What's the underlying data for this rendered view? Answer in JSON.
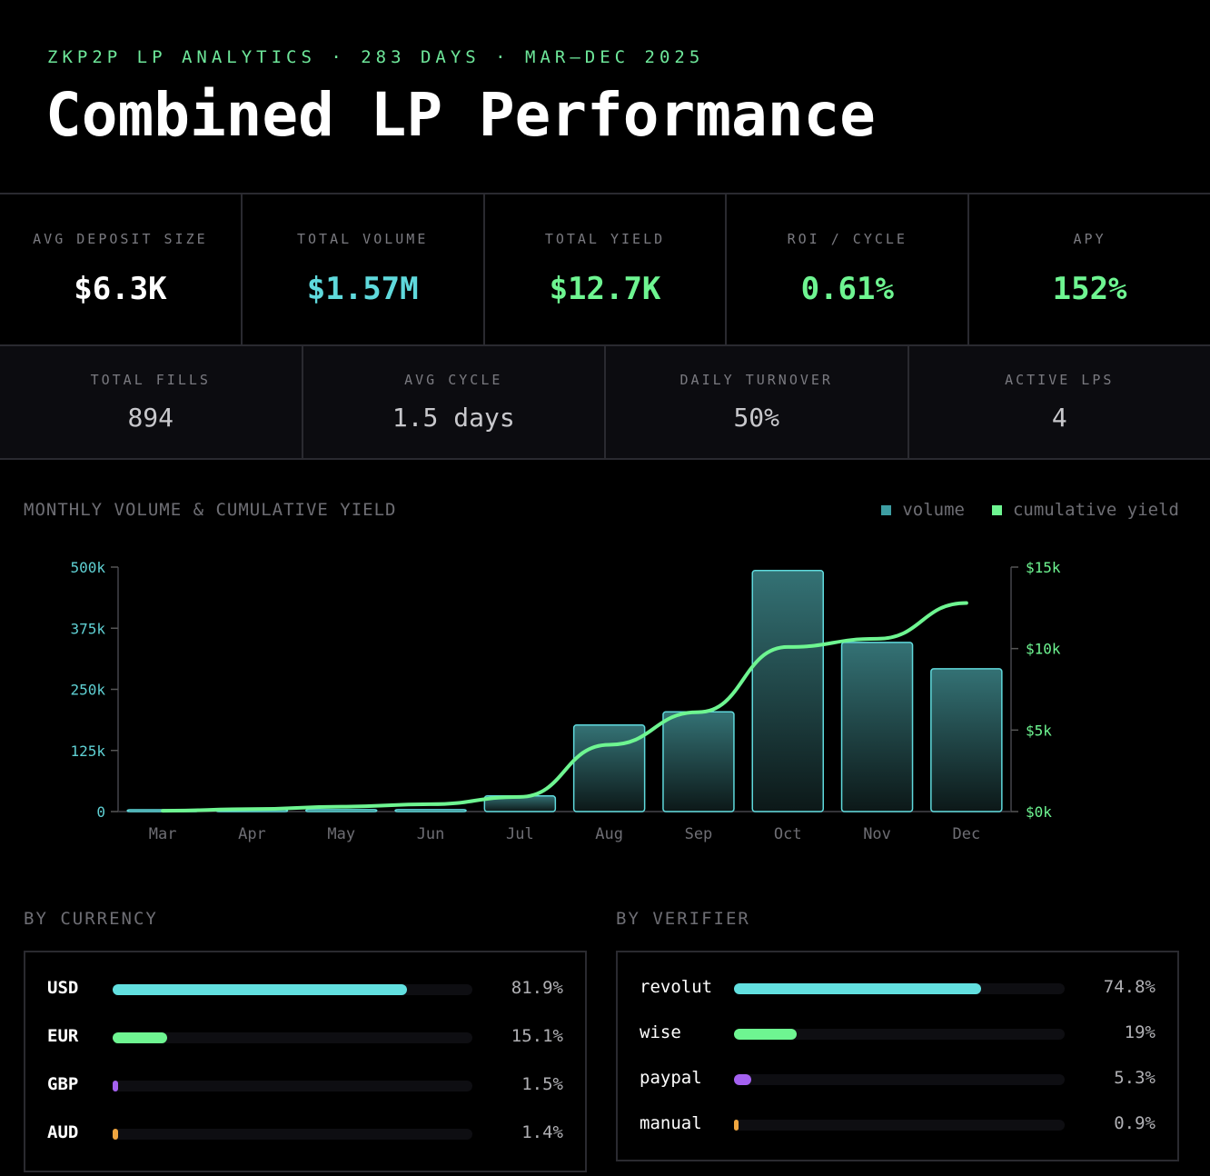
{
  "header": {
    "subtitle": "ZKP2P LP ANALYTICS · 283 DAYS · MAR–DEC 2025",
    "title": "Combined LP Performance"
  },
  "kpis": [
    {
      "label": "AVG DEPOSIT SIZE",
      "value": "$6.3K",
      "color": "#ffffff"
    },
    {
      "label": "TOTAL VOLUME",
      "value": "$1.57M",
      "color": "#5fd9dc"
    },
    {
      "label": "TOTAL YIELD",
      "value": "$12.7K",
      "color": "#6ef591"
    },
    {
      "label": "ROI / CYCLE",
      "value": "0.61%",
      "color": "#6ef591"
    },
    {
      "label": "APY",
      "value": "152%",
      "color": "#6ef591"
    }
  ],
  "stats": [
    {
      "label": "TOTAL FILLS",
      "value": "894"
    },
    {
      "label": "AVG CYCLE",
      "value": "1.5 days"
    },
    {
      "label": "DAILY TURNOVER",
      "value": "50%"
    },
    {
      "label": "ACTIVE LPS",
      "value": "4"
    }
  ],
  "chart_data": {
    "type": "bar+line",
    "title": "MONTHLY VOLUME & CUMULATIVE YIELD",
    "categories": [
      "Mar",
      "Apr",
      "May",
      "Jun",
      "Jul",
      "Aug",
      "Sep",
      "Oct",
      "Nov",
      "Dec"
    ],
    "legend": [
      {
        "name": "volume",
        "color": "#3d9ea3"
      },
      {
        "name": "cumulative yield",
        "color": "#6ef591"
      }
    ],
    "series": [
      {
        "name": "volume",
        "type": "bar",
        "axis": "left",
        "values": [
          2000,
          1500,
          4000,
          4000,
          32000,
          177000,
          204000,
          493000,
          346000,
          292000
        ]
      },
      {
        "name": "cumulative yield",
        "type": "line",
        "axis": "right",
        "values": [
          50,
          150,
          300,
          450,
          900,
          4100,
          6100,
          10100,
          10600,
          12800
        ]
      }
    ],
    "left_axis": {
      "ylim": [
        0,
        500000
      ],
      "ticks": [
        "0",
        "125k",
        "250k",
        "375k",
        "500k"
      ]
    },
    "right_axis": {
      "ylim": [
        0,
        15000
      ],
      "ticks": [
        "$0k",
        "$5k",
        "$10k",
        "$15k"
      ]
    }
  },
  "currency": {
    "title": "BY CURRENCY",
    "items": [
      {
        "name": "USD",
        "pct": "81.9%",
        "value": 81.9,
        "color": "#62e0e0"
      },
      {
        "name": "EUR",
        "pct": "15.1%",
        "value": 15.1,
        "color": "#6ef591"
      },
      {
        "name": "GBP",
        "pct": "1.5%",
        "value": 1.5,
        "color": "#a461f0"
      },
      {
        "name": "AUD",
        "pct": "1.4%",
        "value": 1.4,
        "color": "#f0a640"
      }
    ]
  },
  "verifier": {
    "title": "BY VERIFIER",
    "items": [
      {
        "name": "revolut",
        "pct": "74.8%",
        "value": 74.8,
        "color": "#62e0e0"
      },
      {
        "name": "wise",
        "pct": "19%",
        "value": 19,
        "color": "#6ef591"
      },
      {
        "name": "paypal",
        "pct": "5.3%",
        "value": 5.3,
        "color": "#a461f0"
      },
      {
        "name": "manual",
        "pct": "0.9%",
        "value": 0.9,
        "color": "#f0a640"
      }
    ]
  }
}
